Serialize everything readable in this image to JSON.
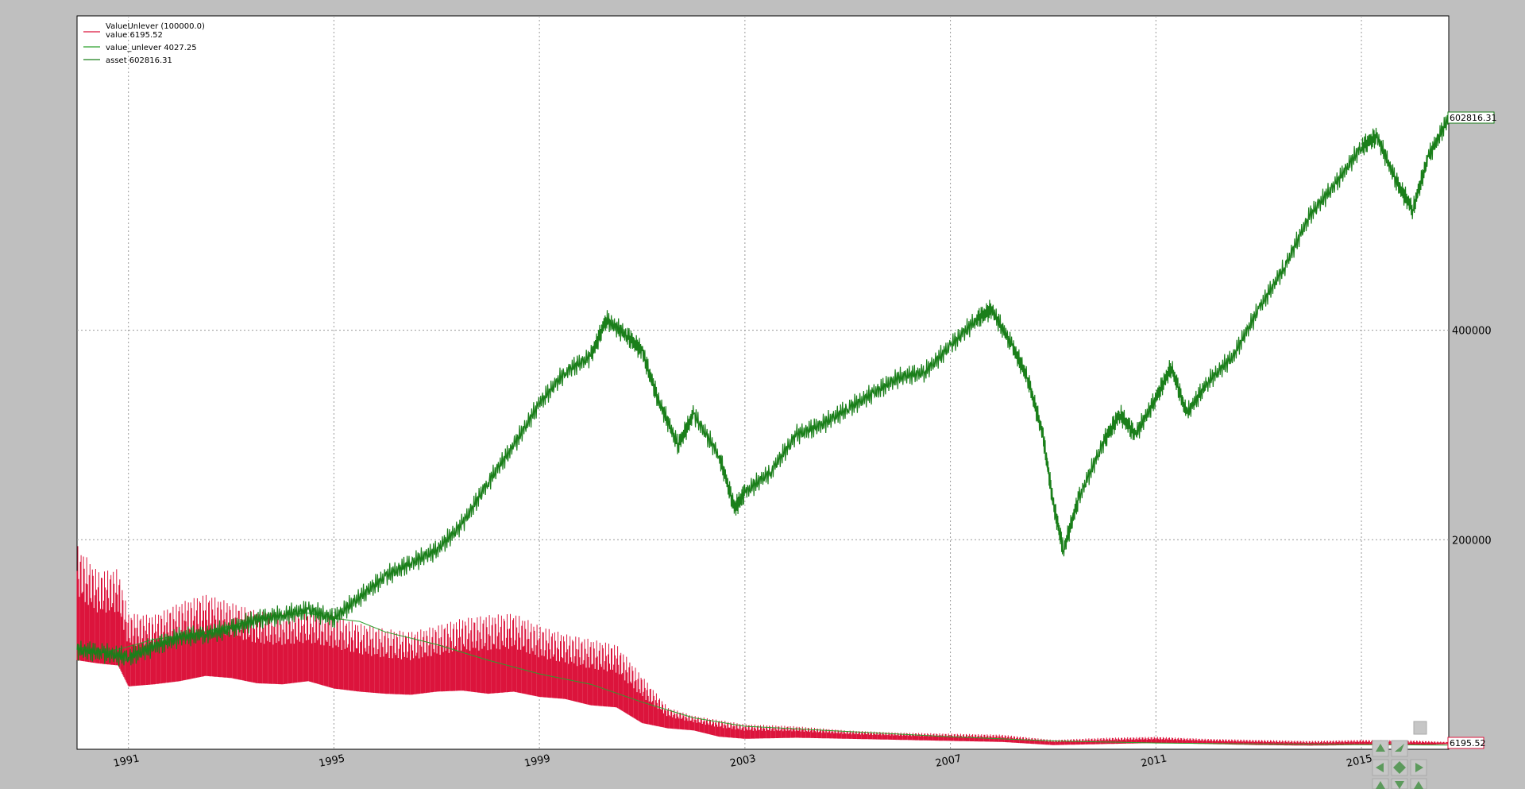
{
  "colors": {
    "background": "#bfbfbf",
    "plot_background": "#ffffff",
    "value_color": "#dc143c",
    "unlever_color": "#2ca02c",
    "asset_color": "#1a7f1a",
    "grid_color": "#9a9a9a"
  },
  "legend": {
    "title": "ValueUnlever (100000.0)",
    "entries": [
      {
        "label": "value 6195.52",
        "color": "#dc143c"
      },
      {
        "label": "value_unlever 4027.25",
        "color": "#2ca02c"
      },
      {
        "label": "asset 602816.31",
        "color": "#1a7f1a"
      }
    ]
  },
  "last_values": {
    "asset": "602816.31",
    "value": "6195.52"
  },
  "toolbar_icons": [
    "home-icon",
    "up-arrow-icon",
    "forward-arrow-icon",
    "left-arrow-icon",
    "pan-icon",
    "right-arrow-icon",
    "back-arrow-icon",
    "down-arrow-icon",
    "zoom-icon"
  ],
  "chart_data": {
    "type": "line",
    "title": "",
    "xlabel": "",
    "ylabel": "",
    "x_ticks": [
      "1991",
      "1995",
      "1999",
      "2003",
      "2007",
      "2011",
      "2015"
    ],
    "y_ticks": [
      "200000",
      "400000"
    ],
    "xlim": [
      1990.0,
      2016.7
    ],
    "ylim": [
      0,
      700000
    ],
    "grid": true,
    "legend_position": "top-left",
    "series": [
      {
        "name": "asset",
        "points": [
          [
            1990.0,
            95000
          ],
          [
            1990.5,
            92000
          ],
          [
            1991.0,
            88000
          ],
          [
            1991.5,
            98000
          ],
          [
            1992.0,
            107000
          ],
          [
            1992.5,
            110000
          ],
          [
            1993.0,
            115000
          ],
          [
            1993.5,
            124000
          ],
          [
            1994.0,
            128000
          ],
          [
            1994.5,
            133000
          ],
          [
            1995.0,
            125000
          ],
          [
            1995.5,
            145000
          ],
          [
            1996.0,
            165000
          ],
          [
            1996.5,
            178000
          ],
          [
            1997.0,
            190000
          ],
          [
            1997.5,
            215000
          ],
          [
            1998.0,
            255000
          ],
          [
            1998.5,
            290000
          ],
          [
            1999.0,
            330000
          ],
          [
            1999.5,
            360000
          ],
          [
            2000.0,
            375000
          ],
          [
            2000.3,
            410000
          ],
          [
            2000.7,
            395000
          ],
          [
            2001.0,
            380000
          ],
          [
            2001.3,
            335000
          ],
          [
            2001.7,
            290000
          ],
          [
            2002.0,
            320000
          ],
          [
            2002.5,
            280000
          ],
          [
            2002.8,
            230000
          ],
          [
            2003.0,
            245000
          ],
          [
            2003.5,
            265000
          ],
          [
            2004.0,
            300000
          ],
          [
            2004.5,
            310000
          ],
          [
            2005.0,
            325000
          ],
          [
            2005.5,
            340000
          ],
          [
            2006.0,
            355000
          ],
          [
            2006.5,
            360000
          ],
          [
            2007.0,
            385000
          ],
          [
            2007.5,
            410000
          ],
          [
            2007.8,
            420000
          ],
          [
            2008.2,
            385000
          ],
          [
            2008.5,
            355000
          ],
          [
            2008.8,
            300000
          ],
          [
            2009.0,
            235000
          ],
          [
            2009.2,
            190000
          ],
          [
            2009.5,
            240000
          ],
          [
            2010.0,
            295000
          ],
          [
            2010.3,
            320000
          ],
          [
            2010.6,
            300000
          ],
          [
            2011.0,
            335000
          ],
          [
            2011.3,
            365000
          ],
          [
            2011.6,
            320000
          ],
          [
            2012.0,
            350000
          ],
          [
            2012.5,
            375000
          ],
          [
            2013.0,
            420000
          ],
          [
            2013.5,
            460000
          ],
          [
            2014.0,
            510000
          ],
          [
            2014.5,
            540000
          ],
          [
            2015.0,
            575000
          ],
          [
            2015.3,
            585000
          ],
          [
            2015.7,
            540000
          ],
          [
            2016.0,
            515000
          ],
          [
            2016.3,
            565000
          ],
          [
            2016.7,
            602816
          ]
        ]
      },
      {
        "name": "value_unlever",
        "points": [
          [
            1990.0,
            97000
          ],
          [
            1990.5,
            92000
          ],
          [
            1991.0,
            98000
          ],
          [
            1991.5,
            105000
          ],
          [
            1992.0,
            108000
          ],
          [
            1992.5,
            112000
          ],
          [
            1993.0,
            118000
          ],
          [
            1993.5,
            124000
          ],
          [
            1994.0,
            128000
          ],
          [
            1994.5,
            130000
          ],
          [
            1995.0,
            125000
          ],
          [
            1995.5,
            122000
          ],
          [
            1996.0,
            112000
          ],
          [
            1997.0,
            100000
          ],
          [
            1998.0,
            85000
          ],
          [
            1999.0,
            72000
          ],
          [
            2000.0,
            62000
          ],
          [
            2001.0,
            45000
          ],
          [
            2002.0,
            30000
          ],
          [
            2003.0,
            22000
          ],
          [
            2005.0,
            17000
          ],
          [
            2007.0,
            12000
          ],
          [
            2009.0,
            8000
          ],
          [
            2011.0,
            6000
          ],
          [
            2013.0,
            5000
          ],
          [
            2016.7,
            4027
          ]
        ]
      },
      {
        "name": "value",
        "band": true,
        "points": [
          [
            1990.0,
            85000,
            195000
          ],
          [
            1990.4,
            82000,
            170000
          ],
          [
            1990.8,
            80000,
            172000
          ],
          [
            1991.0,
            60000,
            130000
          ],
          [
            1991.5,
            62000,
            128000
          ],
          [
            1992.0,
            65000,
            140000
          ],
          [
            1992.5,
            70000,
            148000
          ],
          [
            1993.0,
            68000,
            140000
          ],
          [
            1993.5,
            63000,
            132000
          ],
          [
            1994.0,
            62000,
            130000
          ],
          [
            1994.5,
            65000,
            132000
          ],
          [
            1995.0,
            58000,
            128000
          ],
          [
            1995.5,
            55000,
            120000
          ],
          [
            1996.0,
            53000,
            115000
          ],
          [
            1996.5,
            52000,
            112000
          ],
          [
            1997.0,
            55000,
            118000
          ],
          [
            1997.5,
            56000,
            125000
          ],
          [
            1998.0,
            53000,
            128000
          ],
          [
            1998.5,
            55000,
            130000
          ],
          [
            1999.0,
            50000,
            118000
          ],
          [
            1999.5,
            48000,
            110000
          ],
          [
            2000.0,
            42000,
            105000
          ],
          [
            2000.5,
            40000,
            100000
          ],
          [
            2001.0,
            25000,
            70000
          ],
          [
            2001.5,
            20000,
            40000
          ],
          [
            2002.0,
            18000,
            32000
          ],
          [
            2002.5,
            12000,
            28000
          ],
          [
            2003.0,
            10000,
            24000
          ],
          [
            2004.0,
            11000,
            22000
          ],
          [
            2005.0,
            10000,
            18000
          ],
          [
            2006.0,
            9000,
            16000
          ],
          [
            2007.0,
            8000,
            15000
          ],
          [
            2008.0,
            7000,
            14000
          ],
          [
            2009.0,
            4000,
            9000
          ],
          [
            2010.0,
            5000,
            11000
          ],
          [
            2011.0,
            6000,
            12000
          ],
          [
            2012.0,
            5000,
            10000
          ],
          [
            2013.0,
            4000,
            9000
          ],
          [
            2014.0,
            3500,
            8000
          ],
          [
            2015.0,
            4000,
            9000
          ],
          [
            2016.0,
            3800,
            8500
          ],
          [
            2016.7,
            5000,
            7000
          ]
        ]
      }
    ]
  }
}
